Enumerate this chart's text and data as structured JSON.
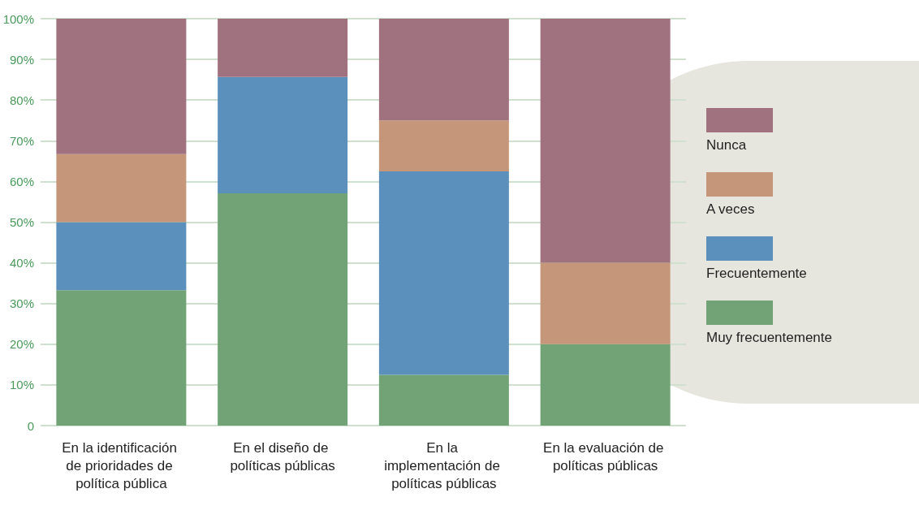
{
  "chart_data": {
    "type": "bar",
    "stacked": true,
    "categories": [
      "En la identificación de prioridades de política pública",
      "En el diseño de políticas públicas",
      "En la implementación de políticas públicas",
      "En la evaluación de políticas públicas"
    ],
    "series": [
      {
        "name": "Muy frecuentemente",
        "color": "#71a376",
        "values": [
          33.3,
          57.1,
          12.5,
          20
        ]
      },
      {
        "name": "Frecuentemente",
        "color": "#5b8fbc",
        "values": [
          16.7,
          28.6,
          50,
          0
        ]
      },
      {
        "name": "A veces",
        "color": "#c59679",
        "values": [
          16.7,
          0,
          12.5,
          20
        ]
      },
      {
        "name": "Nunca",
        "color": "#a0727f",
        "values": [
          33.3,
          14.3,
          25,
          60
        ]
      }
    ],
    "ylim": [
      0,
      100
    ],
    "yticks": [
      {
        "value": 0,
        "label": "0"
      },
      {
        "value": 10,
        "label": "10%"
      },
      {
        "value": 20,
        "label": "20%"
      },
      {
        "value": 30,
        "label": "30%"
      },
      {
        "value": 40,
        "label": "40%"
      },
      {
        "value": 50,
        "label": "50%"
      },
      {
        "value": 60,
        "label": "60%"
      },
      {
        "value": 70,
        "label": "70%"
      },
      {
        "value": 80,
        "label": "80%"
      },
      {
        "value": 90,
        "label": "90%"
      },
      {
        "value": 100,
        "label": "100%"
      }
    ],
    "grid": "y",
    "legend": "right"
  }
}
